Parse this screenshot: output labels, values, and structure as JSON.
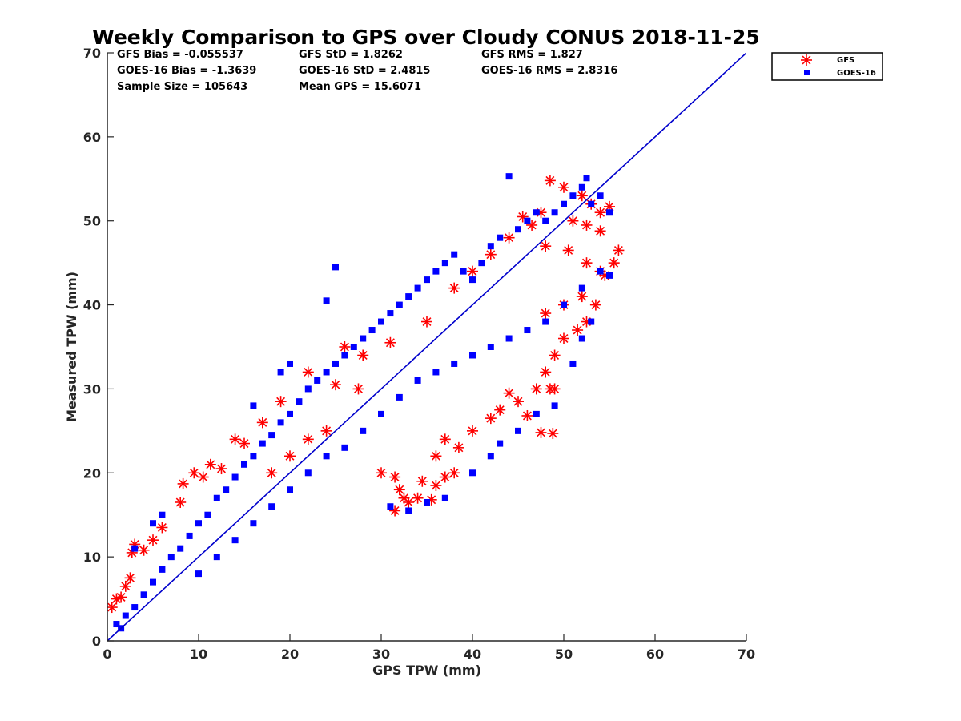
{
  "chart_data": {
    "type": "scatter",
    "title": "Weekly Comparison to GPS over Cloudy CONUS 2018-11-25",
    "xlabel": "GPS TPW (mm)",
    "ylabel": "Measured TPW (mm)",
    "xlim": [
      0,
      70
    ],
    "ylim": [
      0,
      70
    ],
    "xticks": [
      "0",
      "10",
      "20",
      "30",
      "40",
      "50",
      "60",
      "70"
    ],
    "yticks": [
      "0",
      "10",
      "20",
      "30",
      "40",
      "50",
      "60",
      "70"
    ],
    "grid": false,
    "legend_position": "outside-top-right",
    "annotations": [
      "GFS Bias = -0.055537",
      "GFS StD = 1.8262",
      "GFS RMS = 1.827",
      "GOES-16 Bias = -1.3639",
      "GOES-16 StD = 2.4815",
      "GOES-16 RMS = 2.8316",
      "Sample Size = 105643",
      "Mean GPS = 15.6071"
    ],
    "reference_line": {
      "x": [
        0,
        70
      ],
      "y": [
        0,
        70
      ],
      "color": "#0000cc"
    },
    "series": [
      {
        "name": "GFS",
        "marker": "asterisk",
        "color": "#ff0000",
        "points": [
          [
            0.5,
            4.0
          ],
          [
            1.0,
            5.0
          ],
          [
            1.5,
            5.2
          ],
          [
            2.0,
            6.5
          ],
          [
            2.5,
            7.5
          ],
          [
            3.0,
            11.5
          ],
          [
            2.7,
            10.5
          ],
          [
            4.0,
            10.8
          ],
          [
            5.0,
            12.0
          ],
          [
            6.0,
            13.5
          ],
          [
            8.0,
            16.5
          ],
          [
            8.3,
            18.7
          ],
          [
            9.5,
            20.0
          ],
          [
            10.5,
            19.5
          ],
          [
            11.3,
            21.0
          ],
          [
            12.5,
            20.5
          ],
          [
            14.0,
            24.0
          ],
          [
            15.0,
            23.5
          ],
          [
            17.0,
            26.0
          ],
          [
            19.0,
            28.5
          ],
          [
            22.0,
            32.0
          ],
          [
            25.0,
            30.5
          ],
          [
            28.0,
            34.0
          ],
          [
            31.0,
            35.5
          ],
          [
            35.0,
            38.0
          ],
          [
            30.0,
            20.0
          ],
          [
            31.5,
            19.5
          ],
          [
            32.0,
            18.0
          ],
          [
            32.5,
            17.0
          ],
          [
            31.5,
            15.5
          ],
          [
            33.0,
            16.5
          ],
          [
            34.0,
            17.0
          ],
          [
            35.5,
            16.8
          ],
          [
            34.5,
            19.0
          ],
          [
            36.0,
            18.5
          ],
          [
            37.0,
            19.5
          ],
          [
            38.0,
            20.0
          ],
          [
            36.0,
            22.0
          ],
          [
            37.0,
            24.0
          ],
          [
            38.5,
            23.0
          ],
          [
            40.0,
            25.0
          ],
          [
            42.0,
            26.5
          ],
          [
            43.0,
            27.5
          ],
          [
            44.0,
            29.5
          ],
          [
            45.0,
            28.5
          ],
          [
            46.0,
            26.8
          ],
          [
            47.0,
            30.0
          ],
          [
            48.5,
            30.0
          ],
          [
            49.0,
            30.0
          ],
          [
            47.5,
            24.8
          ],
          [
            48.8,
            24.7
          ],
          [
            48.0,
            32.0
          ],
          [
            49.0,
            34.0
          ],
          [
            50.0,
            36.0
          ],
          [
            51.5,
            37.0
          ],
          [
            52.5,
            38.0
          ],
          [
            53.5,
            40.0
          ],
          [
            48.0,
            39.0
          ],
          [
            50.0,
            40.0
          ],
          [
            52.0,
            41.0
          ],
          [
            54.0,
            44.0
          ],
          [
            55.5,
            45.0
          ],
          [
            56.0,
            46.5
          ],
          [
            54.5,
            43.5
          ],
          [
            52.5,
            45.0
          ],
          [
            50.5,
            46.5
          ],
          [
            48.0,
            47.0
          ],
          [
            46.5,
            49.5
          ],
          [
            45.5,
            50.5
          ],
          [
            47.5,
            51.0
          ],
          [
            48.5,
            54.8
          ],
          [
            50.0,
            54.0
          ],
          [
            52.0,
            53.0
          ],
          [
            53.0,
            52.0
          ],
          [
            54.0,
            51.0
          ],
          [
            55.0,
            51.7
          ],
          [
            54.0,
            48.8
          ],
          [
            52.5,
            49.5
          ],
          [
            51.0,
            50.0
          ],
          [
            44.0,
            48.0
          ],
          [
            42.0,
            46.0
          ],
          [
            40.0,
            44.0
          ],
          [
            38.0,
            42.0
          ],
          [
            26.0,
            35.0
          ],
          [
            27.5,
            30.0
          ],
          [
            24.0,
            25.0
          ],
          [
            22.0,
            24.0
          ],
          [
            20.0,
            22.0
          ],
          [
            18.0,
            20.0
          ]
        ]
      },
      {
        "name": "GOES-16",
        "marker": "square",
        "color": "#0000ff",
        "points": [
          [
            1.0,
            2.0
          ],
          [
            1.5,
            1.5
          ],
          [
            2.0,
            3.0
          ],
          [
            3.0,
            4.0
          ],
          [
            4.0,
            5.5
          ],
          [
            5.0,
            7.0
          ],
          [
            6.0,
            8.5
          ],
          [
            7.0,
            10.0
          ],
          [
            8.0,
            11.0
          ],
          [
            9.0,
            12.5
          ],
          [
            10.0,
            14.0
          ],
          [
            11.0,
            15.0
          ],
          [
            12.0,
            17.0
          ],
          [
            13.0,
            18.0
          ],
          [
            14.0,
            19.5
          ],
          [
            15.0,
            21.0
          ],
          [
            16.0,
            22.0
          ],
          [
            17.0,
            23.5
          ],
          [
            18.0,
            24.5
          ],
          [
            19.0,
            26.0
          ],
          [
            20.0,
            27.0
          ],
          [
            21.0,
            28.5
          ],
          [
            22.0,
            30.0
          ],
          [
            23.0,
            31.0
          ],
          [
            24.0,
            32.0
          ],
          [
            25.0,
            33.0
          ],
          [
            26.0,
            34.0
          ],
          [
            27.0,
            35.0
          ],
          [
            28.0,
            36.0
          ],
          [
            29.0,
            37.0
          ],
          [
            30.0,
            38.0
          ],
          [
            31.0,
            39.0
          ],
          [
            32.0,
            40.0
          ],
          [
            33.0,
            41.0
          ],
          [
            34.0,
            42.0
          ],
          [
            35.0,
            43.0
          ],
          [
            36.0,
            44.0
          ],
          [
            37.0,
            45.0
          ],
          [
            38.0,
            46.0
          ],
          [
            39.0,
            44.0
          ],
          [
            40.0,
            43.0
          ],
          [
            41.0,
            45.0
          ],
          [
            42.0,
            47.0
          ],
          [
            43.0,
            48.0
          ],
          [
            44.0,
            55.3
          ],
          [
            45.0,
            49.0
          ],
          [
            46.0,
            50.0
          ],
          [
            47.0,
            51.0
          ],
          [
            48.0,
            50.0
          ],
          [
            49.0,
            51.0
          ],
          [
            50.0,
            52.0
          ],
          [
            51.0,
            53.0
          ],
          [
            52.0,
            54.0
          ],
          [
            52.5,
            55.1
          ],
          [
            53.0,
            52.0
          ],
          [
            54.0,
            53.0
          ],
          [
            55.0,
            51.0
          ],
          [
            10.0,
            8.0
          ],
          [
            12.0,
            10.0
          ],
          [
            14.0,
            12.0
          ],
          [
            16.0,
            14.0
          ],
          [
            18.0,
            16.0
          ],
          [
            20.0,
            18.0
          ],
          [
            22.0,
            20.0
          ],
          [
            24.0,
            22.0
          ],
          [
            26.0,
            23.0
          ],
          [
            28.0,
            25.0
          ],
          [
            30.0,
            27.0
          ],
          [
            32.0,
            29.0
          ],
          [
            34.0,
            31.0
          ],
          [
            36.0,
            32.0
          ],
          [
            38.0,
            33.0
          ],
          [
            40.0,
            34.0
          ],
          [
            42.0,
            35.0
          ],
          [
            44.0,
            36.0
          ],
          [
            46.0,
            37.0
          ],
          [
            48.0,
            38.0
          ],
          [
            50.0,
            40.0
          ],
          [
            52.0,
            42.0
          ],
          [
            54.0,
            44.0
          ],
          [
            31.0,
            16.0
          ],
          [
            33.0,
            15.5
          ],
          [
            35.0,
            16.5
          ],
          [
            37.0,
            17.0
          ],
          [
            40.0,
            20.0
          ],
          [
            42.0,
            22.0
          ],
          [
            43.0,
            23.5
          ],
          [
            45.0,
            25.0
          ],
          [
            47.0,
            27.0
          ],
          [
            49.0,
            28.0
          ],
          [
            51.0,
            33.0
          ],
          [
            52.0,
            36.0
          ],
          [
            53.0,
            38.0
          ],
          [
            55.0,
            43.5
          ],
          [
            25.0,
            44.5
          ],
          [
            24.0,
            40.5
          ],
          [
            19.0,
            32.0
          ],
          [
            20.0,
            33.0
          ],
          [
            16.0,
            28.0
          ],
          [
            6.0,
            15.0
          ],
          [
            5.0,
            14.0
          ],
          [
            3.0,
            11.0
          ]
        ]
      }
    ]
  }
}
